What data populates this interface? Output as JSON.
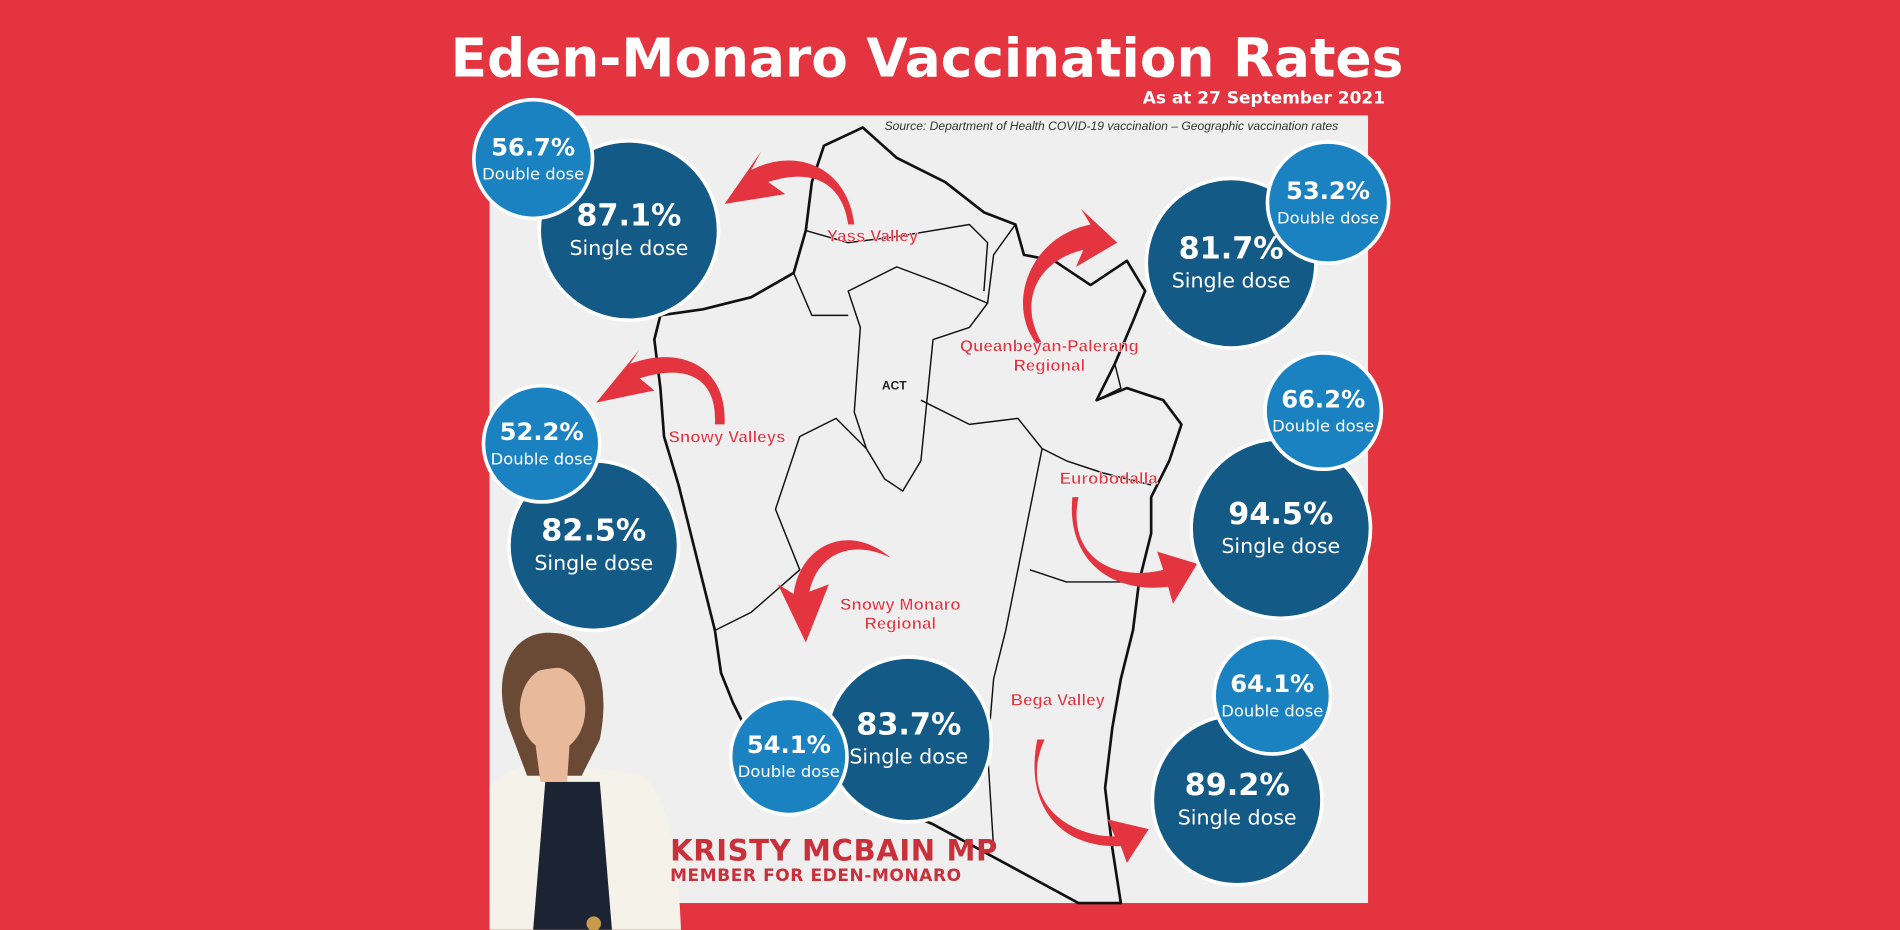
{
  "header": {
    "title": "Eden-Monaro Vaccination Rates",
    "subtitle": "As at 27 September 2021"
  },
  "source": "Source:  Department of Health COVID-19 vaccination – Geographic vaccination rates",
  "map_label": "ACT",
  "regions": [
    {
      "name": "Yass Valley",
      "single": {
        "value": "87.1%",
        "label": "Single dose"
      },
      "double": {
        "value": "56.7%",
        "label": "Double dose"
      }
    },
    {
      "name": "Queanbeyan-Palerang Regional",
      "single": {
        "value": "81.7%",
        "label": "Single dose"
      },
      "double": {
        "value": "53.2%",
        "label": "Double dose"
      }
    },
    {
      "name": "Snowy Valleys",
      "single": {
        "value": "82.5%",
        "label": "Single dose"
      },
      "double": {
        "value": "52.2%",
        "label": "Double dose"
      }
    },
    {
      "name": "Eurobodalla",
      "single": {
        "value": "94.5%",
        "label": "Single dose"
      },
      "double": {
        "value": "66.2%",
        "label": "Double dose"
      }
    },
    {
      "name": "Snowy Monaro Regional",
      "single": {
        "value": "83.7%",
        "label": "Single dose"
      },
      "double": {
        "value": "54.1%",
        "label": "Double dose"
      }
    },
    {
      "name": "Bega Valley",
      "single": {
        "value": "89.2%",
        "label": "Single dose"
      },
      "double": {
        "value": "64.1%",
        "label": "Double dose"
      }
    }
  ],
  "author": {
    "name": "KRISTY MCBAIN MP",
    "role": "MEMBER FOR EDEN-MONARO"
  }
}
